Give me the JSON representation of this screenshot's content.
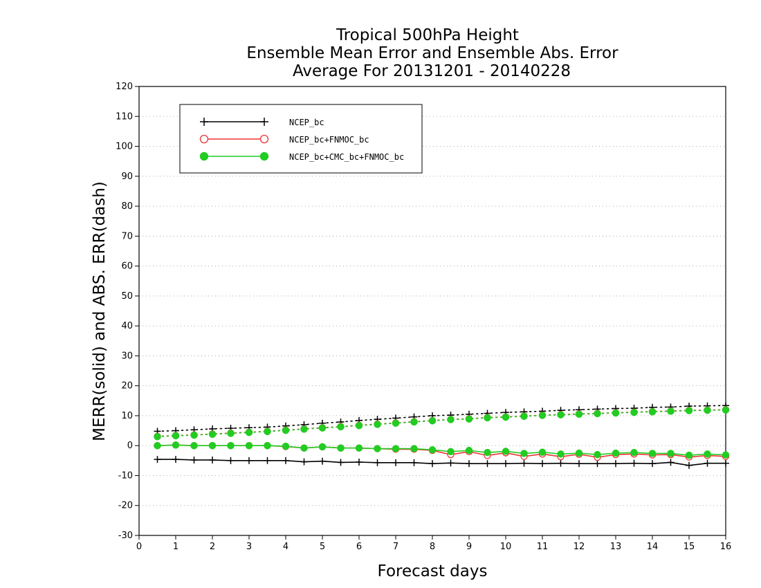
{
  "chart_data": {
    "type": "line",
    "title_lines": [
      "Tropical 500hPa Height",
      "Ensemble Mean Error and Ensemble Abs. Error",
      "Average For 20131201 - 20140228"
    ],
    "xlabel": "Forecast days",
    "ylabel": "MERR(solid) and ABS. ERR(dash)",
    "xlim": [
      0,
      16
    ],
    "ylim": [
      -30,
      120
    ],
    "x_ticks": [
      "0",
      "1",
      "2",
      "3",
      "4",
      "5",
      "6",
      "7",
      "8",
      "9",
      "10",
      "11",
      "12",
      "13",
      "14",
      "15",
      "16"
    ],
    "y_ticks": [
      "-30",
      "-20",
      "-10",
      "0",
      "10",
      "20",
      "30",
      "40",
      "50",
      "60",
      "70",
      "80",
      "90",
      "100",
      "110",
      "120"
    ],
    "grid": "horizontal dotted",
    "legend_position": "top-left",
    "x": [
      0.5,
      1,
      1.5,
      2,
      2.5,
      3,
      3.5,
      4,
      4.5,
      5,
      5.5,
      6,
      6.5,
      7,
      7.5,
      8,
      8.5,
      9,
      9.5,
      10,
      10.5,
      11,
      11.5,
      12,
      12.5,
      13,
      13.5,
      14,
      14.5,
      15,
      15.5,
      16
    ],
    "series": [
      {
        "name": "NCEP_bc",
        "color": "#000000",
        "marker": "plus",
        "merr": [
          -4.6,
          -4.6,
          -4.8,
          -4.8,
          -5.0,
          -5.0,
          -5.0,
          -5.0,
          -5.4,
          -5.2,
          -5.6,
          -5.5,
          -5.7,
          -5.7,
          -5.7,
          -6.0,
          -5.8,
          -6.0,
          -6.0,
          -6.0,
          -5.9,
          -6.0,
          -5.9,
          -6.0,
          -6.0,
          -6.0,
          -5.9,
          -6.0,
          -5.6,
          -6.6,
          -5.9,
          -5.9
        ],
        "abs_err": [
          4.8,
          5.0,
          5.3,
          5.6,
          5.8,
          6.0,
          6.2,
          6.6,
          7.0,
          7.5,
          7.9,
          8.4,
          8.8,
          9.2,
          9.6,
          10.0,
          10.2,
          10.5,
          10.8,
          11.1,
          11.3,
          11.5,
          11.8,
          12.0,
          12.2,
          12.4,
          12.5,
          12.8,
          12.9,
          13.2,
          13.3,
          13.4
        ]
      },
      {
        "name": "NCEP_bc+FNMOC_bc",
        "color": "#ee3333",
        "marker": "open-circle",
        "merr": [
          0.0,
          0.2,
          0.0,
          0.0,
          0.0,
          0.0,
          0.0,
          -0.3,
          -0.8,
          -0.4,
          -0.8,
          -0.8,
          -1.0,
          -1.2,
          -1.2,
          -1.6,
          -3.0,
          -2.0,
          -3.3,
          -2.4,
          -3.6,
          -2.8,
          -3.7,
          -2.9,
          -3.9,
          -3.0,
          -2.8,
          -3.1,
          -3.0,
          -3.8,
          -3.3,
          -3.6
        ],
        "abs_err": [
          3.1,
          3.4,
          3.6,
          3.9,
          4.2,
          4.5,
          4.8,
          5.2,
          5.6,
          6.0,
          6.4,
          6.8,
          7.2,
          7.6,
          8.0,
          8.4,
          8.8,
          9.0,
          9.4,
          9.6,
          9.9,
          10.2,
          10.4,
          10.6,
          10.8,
          11.0,
          11.2,
          11.4,
          11.6,
          11.8,
          11.9,
          12.0
        ]
      },
      {
        "name": "NCEP_bc+CMC_bc+FNMOC_bc",
        "color": "#22cc22",
        "marker": "filled-circle",
        "merr": [
          0.0,
          0.2,
          0.0,
          0.0,
          0.0,
          0.0,
          0.0,
          -0.2,
          -0.8,
          -0.4,
          -0.8,
          -0.8,
          -1.0,
          -1.0,
          -1.0,
          -1.4,
          -2.0,
          -1.6,
          -2.3,
          -1.9,
          -2.6,
          -2.2,
          -2.8,
          -2.5,
          -3.0,
          -2.5,
          -2.3,
          -2.6,
          -2.6,
          -3.2,
          -2.8,
          -3.1
        ],
        "abs_err": [
          3.0,
          3.3,
          3.5,
          3.8,
          4.1,
          4.4,
          4.7,
          5.1,
          5.5,
          5.9,
          6.3,
          6.7,
          7.1,
          7.5,
          7.9,
          8.3,
          8.7,
          8.9,
          9.3,
          9.5,
          9.8,
          10.1,
          10.3,
          10.5,
          10.7,
          10.9,
          11.1,
          11.3,
          11.5,
          11.7,
          11.8,
          11.9
        ]
      }
    ]
  }
}
